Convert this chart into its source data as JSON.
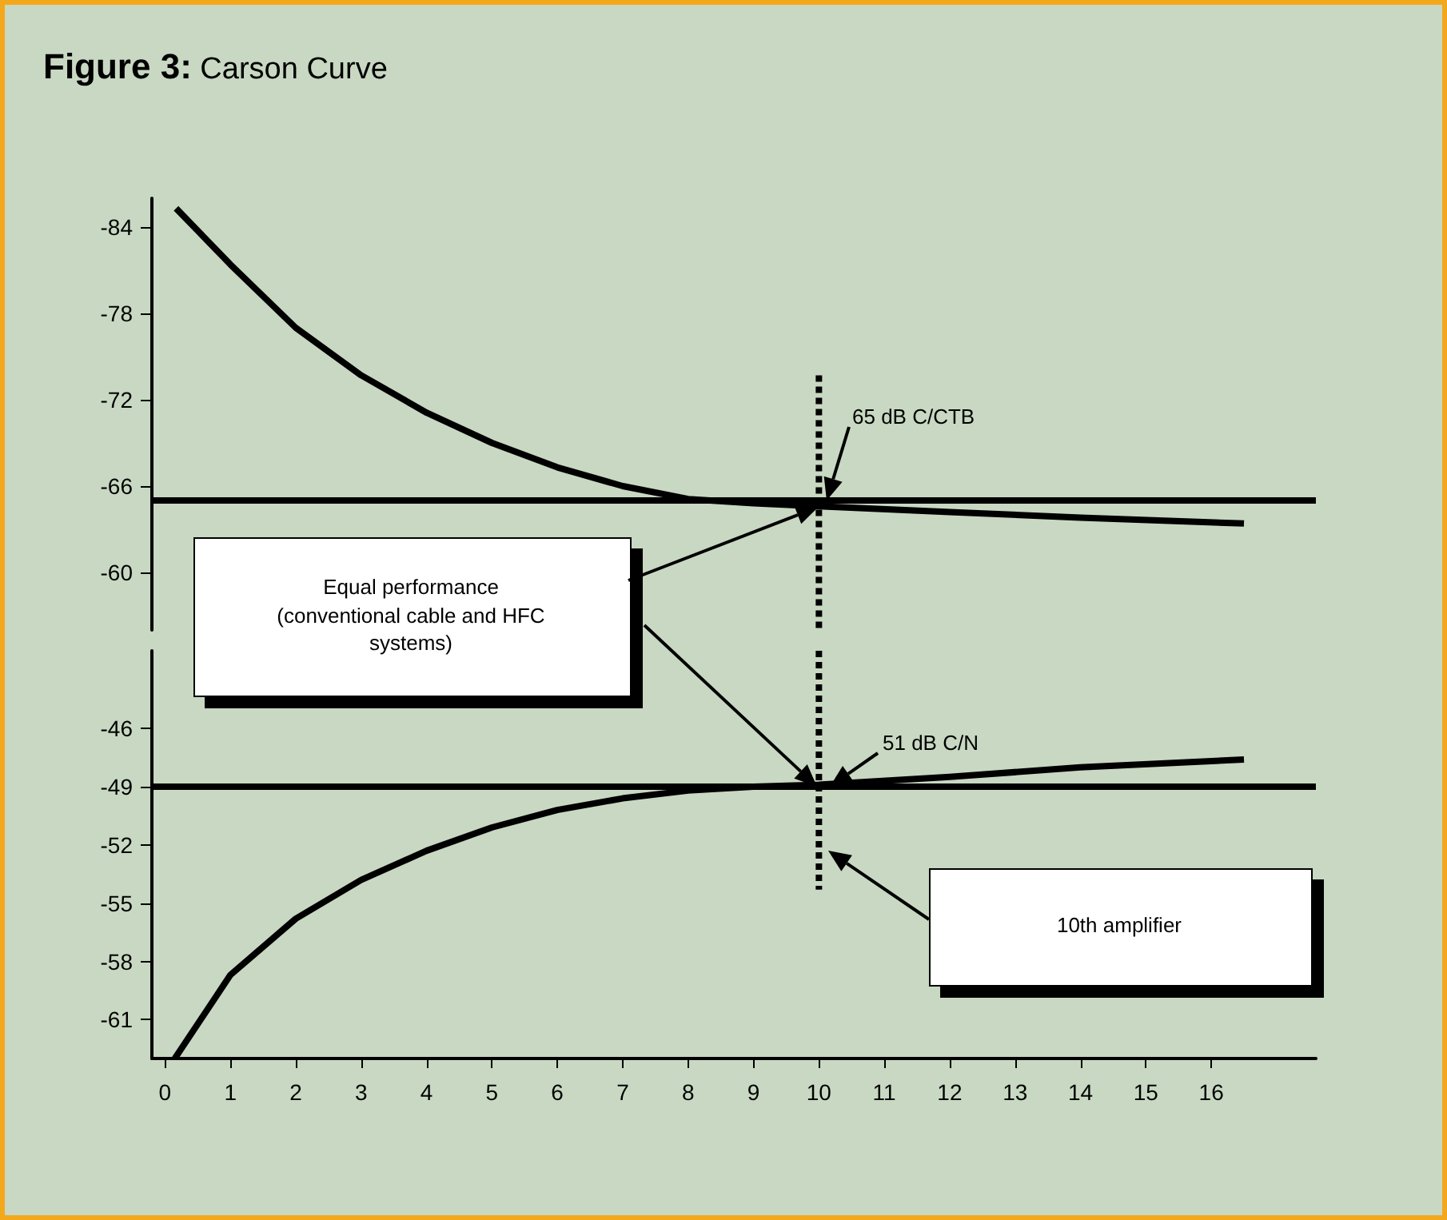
{
  "chart_data": [
    {
      "type": "line",
      "title": "Figure 3: Carson Curve",
      "xlim": [
        -0.2,
        17.6
      ],
      "xticks": [
        0,
        1,
        2,
        3,
        4,
        5,
        6,
        7,
        8,
        9,
        10,
        11,
        12,
        13,
        14,
        15,
        16
      ],
      "ylim": [
        -56,
        -86
      ],
      "yticks": [
        -84,
        -78,
        -72,
        -66,
        -60
      ],
      "tick_labels": "y",
      "series": [
        {
          "color": "#000000",
          "x": [
            0.17,
            1,
            2,
            3,
            4,
            5,
            6,
            7,
            8,
            9,
            10,
            12,
            14,
            16.5
          ],
          "values": [
            -85.3,
            -81.4,
            -77,
            -73.7,
            -71.1,
            -69,
            -67.3,
            -66,
            -65.1,
            -64.8,
            -64.6,
            -64.2,
            -63.8,
            -63.4
          ]
        },
        {
          "color": "#000000",
          "line_style": "dotted",
          "x": [
            10,
            10
          ],
          "values": [
            -73.7,
            -56
          ]
        }
      ],
      "ref_lines": [
        {
          "axis": "y",
          "value": -65,
          "color": "#000000"
        }
      ],
      "annotations": [
        "65 dB C/CTB",
        "Equal performance (conventional cable and HFC systems)"
      ]
    },
    {
      "type": "line",
      "xlim": [
        -0.2,
        17.6
      ],
      "xticks": [
        0,
        1,
        2,
        3,
        4,
        5,
        6,
        7,
        8,
        9,
        10,
        11,
        12,
        13,
        14,
        15,
        16
      ],
      "ylim": [
        -63,
        -42
      ],
      "yticks": [
        -46,
        -49,
        -52,
        -55,
        -58,
        -61
      ],
      "series": [
        {
          "color": "#000000",
          "x": [
            0.15,
            1,
            2,
            3,
            4,
            5,
            6,
            7,
            8,
            9,
            10,
            12,
            14,
            16.5
          ],
          "values": [
            -63,
            -58.7,
            -55.8,
            -53.8,
            -52.3,
            -51.1,
            -50.2,
            -49.6,
            -49.2,
            -49,
            -48.9,
            -48.5,
            -48,
            -47.6
          ]
        },
        {
          "color": "#000000",
          "line_style": "dotted",
          "x": [
            10,
            10
          ],
          "values": [
            -42,
            -54.3
          ]
        }
      ],
      "ref_lines": [
        {
          "axis": "y",
          "value": -49,
          "color": "#000000"
        }
      ],
      "annotations": [
        "51 dB C/N",
        "10th amplifier"
      ]
    }
  ]
}
